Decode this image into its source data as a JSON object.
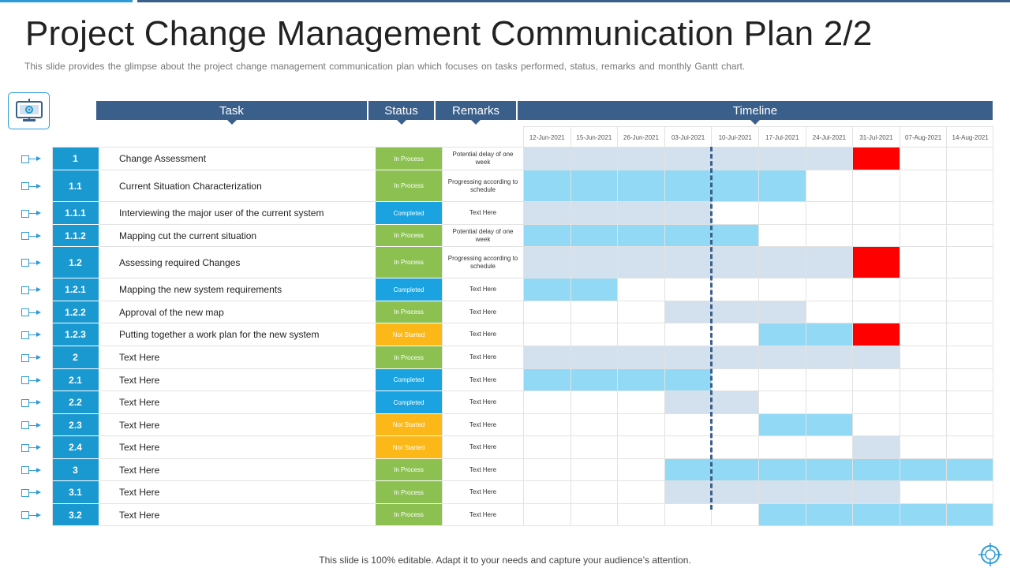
{
  "title": "Project Change Management Communication Plan 2/2",
  "subtitle": "This slide provides  the glimpse about the project change management  communication plan which focuses on tasks performed,  status, remarks and monthly Gantt chart.",
  "headers": {
    "task": "Task",
    "status": "Status",
    "remarks": "Remarks",
    "timeline": "Timeline"
  },
  "dates": [
    "12-Jun-2021",
    "15-Jun-2021",
    "26-Jun-2021",
    "03-Jul-2021",
    "10-Jul-2021",
    "17-Jul-2021",
    "24-Jul-2021",
    "31-Jul-2021",
    "07-Aug-2021",
    "14-Aug-2021"
  ],
  "colors": {
    "header": "#3a5f8a",
    "number": "#1a99d1",
    "in_process": "#8cc152",
    "completed": "#1aa3e0",
    "not_started": "#fbb818",
    "bar_gray": "#d3e0ee",
    "bar_blue": "#92d9f5",
    "bar_red": "#ff0000"
  },
  "rows": [
    {
      "num": "1",
      "task": "Change Assessment",
      "status": "In Process",
      "remark": "Potential delay of one week",
      "cells": "GGGGGGGR.."
    },
    {
      "num": "1.1",
      "task": "Current Situation Characterization",
      "status": "In Process",
      "remark": "Progressing according to schedule",
      "cells": "BBBBBB...."
    },
    {
      "num": "1.1.1",
      "task": "Interviewing the major user of the current system",
      "status": "Completed",
      "remark": "Text Here",
      "cells": "GGGG......"
    },
    {
      "num": "1.1.2",
      "task": "Mapping cut the current situation",
      "status": "In Process",
      "remark": "Potential delay of one week",
      "cells": "BBBBB....."
    },
    {
      "num": "1.2",
      "task": "Assessing required Changes",
      "status": "In Process",
      "remark": "Progressing according to schedule",
      "cells": "GGGGGGGR.."
    },
    {
      "num": "1.2.1",
      "task": "Mapping the new system requirements",
      "status": "Completed",
      "remark": "Text Here",
      "cells": "BB........"
    },
    {
      "num": "1.2.2",
      "task": "Approval of the new map",
      "status": "In Process",
      "remark": "Text Here",
      "cells": "...GGG...."
    },
    {
      "num": "1.2.3",
      "task": "Putting together a work plan for the new system",
      "status": "Not Started",
      "remark": "Text Here",
      "cells": ".....BBR.."
    },
    {
      "num": "2",
      "task": "Text Here",
      "status": "In Process",
      "remark": "Text Here",
      "cells": "GGGGGGGG.."
    },
    {
      "num": "2.1",
      "task": "Text Here",
      "status": "Completed",
      "remark": "Text Here",
      "cells": "BBBB......"
    },
    {
      "num": "2.2",
      "task": "Text Here",
      "status": "Completed",
      "remark": "Text Here",
      "cells": "...GG....."
    },
    {
      "num": "2.3",
      "task": "Text Here",
      "status": "Not Started",
      "remark": "Text Here",
      "cells": ".....BB..."
    },
    {
      "num": "2.4",
      "task": "Text Here",
      "status": "Not Started",
      "remark": "Text Here",
      "cells": ".......G.."
    },
    {
      "num": "3",
      "task": "Text Here",
      "status": "In Process",
      "remark": "Text Here",
      "cells": "...BBBBBBB"
    },
    {
      "num": "3.1",
      "task": "Text Here",
      "status": "In Process",
      "remark": "Text Here",
      "cells": "...GGGGG.."
    },
    {
      "num": "3.2",
      "task": "Text Here",
      "status": "In Process",
      "remark": "Text Here",
      "cells": ".....BBBBB"
    }
  ],
  "footer": "This slide is 100% editable. Adapt it to your needs and capture your audience’s attention."
}
